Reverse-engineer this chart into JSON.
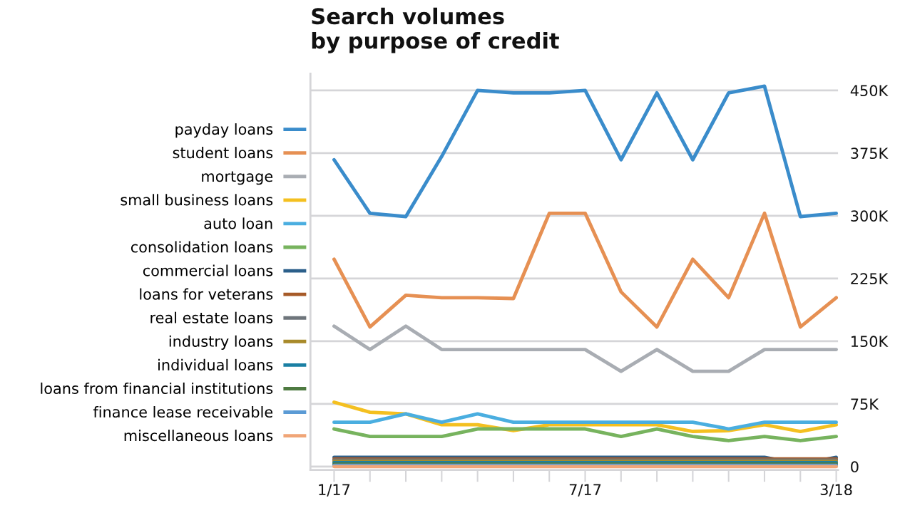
{
  "chart_data": {
    "type": "line",
    "title": "Search volumes\nby purpose of credit",
    "categories": [
      "1/17",
      null,
      null,
      null,
      null,
      null,
      null,
      "7/17",
      null,
      null,
      null,
      null,
      null,
      null,
      "3/18"
    ],
    "series": [
      {
        "name": "payday loans",
        "color": "#3a8ccb",
        "values": [
          367000,
          303000,
          299000,
          371000,
          450000,
          447000,
          447000,
          450000,
          367000,
          447000,
          367000,
          447000,
          455000,
          299000,
          303000
        ]
      },
      {
        "name": "student loans",
        "color": "#e69053",
        "values": [
          248000,
          167000,
          205000,
          202000,
          202000,
          201000,
          303000,
          303000,
          209000,
          167000,
          248000,
          202000,
          303000,
          167000,
          202000
        ]
      },
      {
        "name": "mortgage",
        "color": "#a9adb3",
        "values": [
          168000,
          140000,
          168000,
          140000,
          140000,
          140000,
          140000,
          140000,
          114000,
          140000,
          114000,
          114000,
          140000,
          140000,
          140000
        ]
      },
      {
        "name": "small business loans",
        "color": "#f4c020",
        "values": [
          77000,
          65000,
          63000,
          50000,
          50000,
          43000,
          50000,
          50000,
          50000,
          50000,
          42000,
          43000,
          50000,
          42000,
          50000
        ]
      },
      {
        "name": "auto loan",
        "color": "#4aaee0",
        "values": [
          53000,
          53000,
          63000,
          53000,
          63000,
          53000,
          53000,
          53000,
          53000,
          53000,
          53000,
          45000,
          53000,
          53000,
          53000
        ]
      },
      {
        "name": "consolidation loans",
        "color": "#77b35e",
        "values": [
          45000,
          36000,
          36000,
          36000,
          45000,
          45000,
          45000,
          45000,
          36000,
          45000,
          36000,
          31000,
          36000,
          31000,
          36000
        ]
      },
      {
        "name": "commercial loans",
        "color": "#2b5f8a",
        "values": [
          11000,
          11000,
          11000,
          11000,
          11000,
          11000,
          11000,
          11000,
          11000,
          11000,
          11000,
          11000,
          11000,
          3000,
          11000
        ]
      },
      {
        "name": "loans for veterans",
        "color": "#a65a28",
        "values": [
          9000,
          9000,
          9000,
          9000,
          9000,
          9000,
          9000,
          9000,
          9000,
          9000,
          9000,
          9000,
          9000,
          9000,
          9000
        ]
      },
      {
        "name": "real estate loans",
        "color": "#6e757b",
        "values": [
          7500,
          7500,
          7500,
          7500,
          7500,
          7500,
          7500,
          7500,
          7500,
          7500,
          7500,
          7500,
          7500,
          7500,
          7500
        ]
      },
      {
        "name": "industry loans",
        "color": "#a88a2a",
        "values": [
          6000,
          6000,
          6000,
          6000,
          6000,
          6000,
          6000,
          6000,
          6000,
          6000,
          6000,
          6000,
          6000,
          6000,
          6000
        ]
      },
      {
        "name": "individual loans",
        "color": "#1a7fa3",
        "values": [
          4500,
          4500,
          4500,
          4500,
          4500,
          4500,
          4500,
          4500,
          4500,
          4500,
          4500,
          4500,
          4500,
          4500,
          4500
        ]
      },
      {
        "name": "loans from financial institutions",
        "color": "#4e7a41",
        "values": [
          3000,
          3000,
          3000,
          3000,
          3000,
          3000,
          3000,
          3000,
          3000,
          3000,
          3000,
          3000,
          3000,
          3000,
          3000
        ]
      },
      {
        "name": "finance lease receivable",
        "color": "#5b9bd5",
        "values": [
          1500,
          1500,
          1500,
          1500,
          1500,
          1500,
          1500,
          1500,
          1500,
          1500,
          1500,
          1500,
          1500,
          1500,
          1500
        ]
      },
      {
        "name": "miscellaneous loans",
        "color": "#f0a577",
        "values": [
          0,
          0,
          0,
          0,
          0,
          0,
          0,
          0,
          0,
          0,
          0,
          0,
          0,
          0,
          0
        ]
      }
    ],
    "ylim": [
      -4000,
      470000
    ],
    "yticks": [
      0,
      {
        "value": 75000,
        "label": "75K"
      },
      {
        "value": 150000,
        "label": "150K"
      },
      {
        "value": 225000,
        "label": "225K"
      },
      {
        "value": 300000,
        "label": "300K"
      },
      {
        "value": 375000,
        "label": "375K"
      },
      {
        "value": 450000,
        "label": "450K"
      }
    ],
    "grid": "y",
    "legend": "left",
    "marker": "none",
    "line_style": "solid"
  }
}
